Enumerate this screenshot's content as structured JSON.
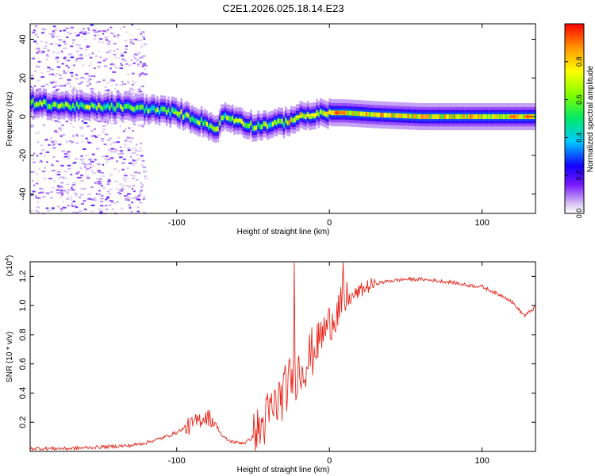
{
  "title": "C2E1.2026.025.18.14.E23",
  "chart_data": [
    {
      "type": "heatmap",
      "xlabel": "Height of straight line (km)",
      "ylabel": "Frequency (Hz)",
      "xlim": [
        -196,
        135
      ],
      "ylim": [
        -50,
        48
      ],
      "xticks": [
        -100,
        0,
        100
      ],
      "yticks": [
        -40,
        -20,
        0,
        20,
        40
      ],
      "xtick_labels": [
        "-100",
        "0",
        "100"
      ],
      "ytick_labels": [
        "-40",
        "-20",
        "0",
        "20",
        "40"
      ],
      "colorbar": {
        "label": "Normalized spectral amplitude",
        "range": [
          0.0,
          1.0
        ],
        "ticks": [
          0.0,
          0.2,
          0.4,
          0.6,
          0.8
        ],
        "tick_labels": [
          "0.0",
          "0.2",
          "0.4",
          "0.6",
          "0.8"
        ]
      },
      "ridge": {
        "x": [
          -195,
          -180,
          -160,
          -140,
          -120,
          -100,
          -90,
          -80,
          -75,
          -70,
          -60,
          -50,
          -40,
          -30,
          -20,
          -10,
          0,
          10,
          30,
          60,
          100,
          135
        ],
        "freq": [
          7,
          6,
          5,
          5,
          4,
          2,
          -1,
          -4,
          -7,
          0,
          -2,
          -5,
          -4,
          -3,
          0,
          1,
          2,
          2,
          1,
          0,
          0,
          0
        ]
      }
    },
    {
      "type": "line",
      "xlabel": "Height of straight line (km)",
      "ylabel": "SNR (10 * v/v)",
      "y_multiplier": "(x10",
      "y_multiplier_exp": "4",
      "y_multiplier_close": ")",
      "xlim": [
        -196,
        135
      ],
      "ylim": [
        0.0,
        1.3
      ],
      "xticks": [
        -100,
        0,
        100
      ],
      "yticks": [
        0.2,
        0.4,
        0.6,
        0.8,
        1.0,
        1.2
      ],
      "xtick_labels": [
        "-100",
        "0",
        "100"
      ],
      "ytick_labels": [
        "0.2",
        "0.4",
        "0.6",
        "0.8",
        "1.0",
        "1.2"
      ],
      "color": "#e8281e",
      "series": [
        {
          "name": "SNR",
          "x": [
            -196,
            -170,
            -150,
            -130,
            -120,
            -110,
            -100,
            -95,
            -90,
            -85,
            -80,
            -75,
            -70,
            -65,
            -60,
            -55,
            -50,
            -45,
            -40,
            -35,
            -30,
            -25,
            -20,
            -15,
            -10,
            -5,
            0,
            5,
            10,
            15,
            20,
            25,
            30,
            40,
            50,
            60,
            70,
            80,
            90,
            100,
            110,
            115,
            120,
            125,
            128,
            135
          ],
          "y": [
            0.02,
            0.02,
            0.03,
            0.04,
            0.06,
            0.09,
            0.13,
            0.16,
            0.18,
            0.22,
            0.24,
            0.2,
            0.1,
            0.07,
            0.06,
            0.06,
            0.1,
            0.15,
            0.25,
            0.32,
            0.4,
            0.5,
            0.55,
            0.62,
            0.7,
            0.8,
            0.88,
            0.96,
            1.02,
            1.06,
            1.1,
            1.13,
            1.15,
            1.17,
            1.18,
            1.18,
            1.17,
            1.16,
            1.14,
            1.13,
            1.08,
            1.06,
            1.02,
            0.96,
            0.93,
            0.99
          ]
        }
      ]
    }
  ]
}
